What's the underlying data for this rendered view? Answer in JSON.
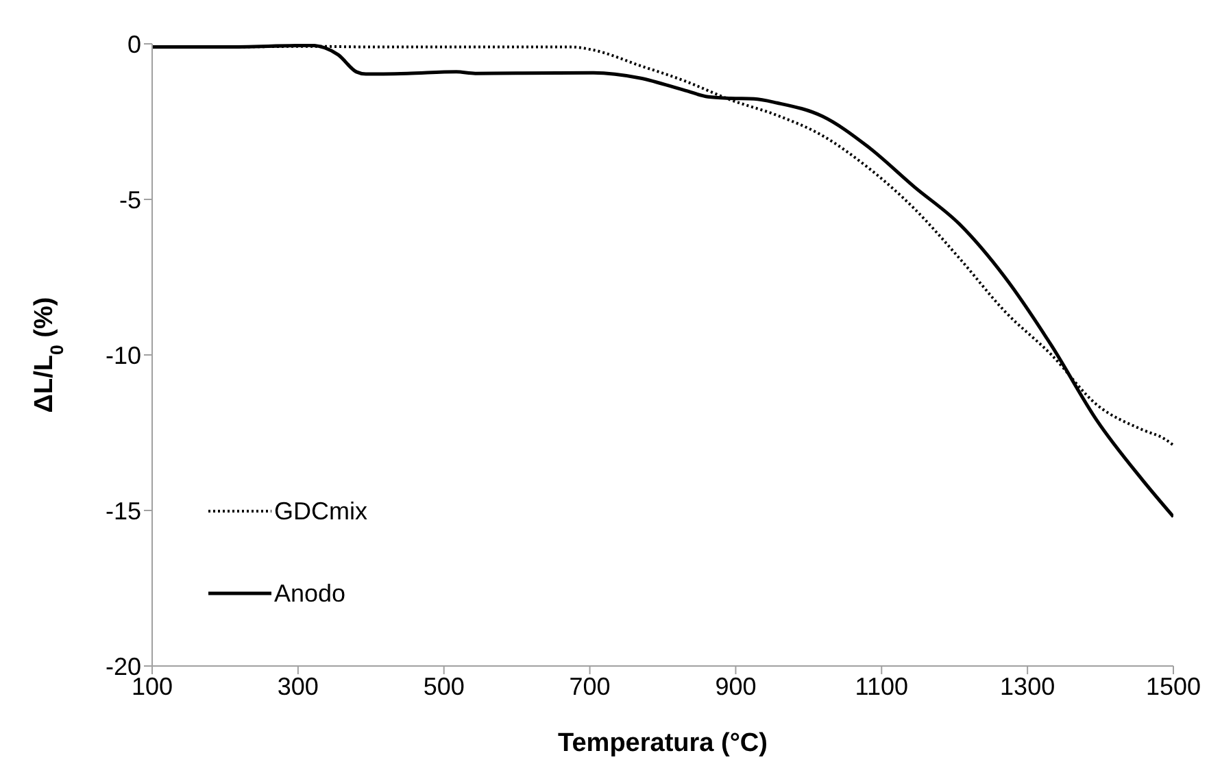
{
  "chart_data": {
    "type": "line",
    "xlabel": "Temperatura (°C)",
    "ylabel": "ΔL/L$_{0}$ (%)",
    "xlim": [
      100,
      1500
    ],
    "xticks": [
      100,
      300,
      500,
      700,
      900,
      1100,
      1300,
      1500
    ],
    "ylim": [
      -20,
      0
    ],
    "yticks": [
      -20,
      -15,
      -10,
      -5,
      0
    ],
    "grid": false,
    "legend": "bottom left",
    "marker": "none",
    "series": [
      {
        "name": "GDCmix",
        "color": "#000000",
        "line_style": "dotted",
        "x": [
          100,
          200,
          318,
          400,
          500,
          600,
          675,
          705,
          769,
          831,
          893,
          957,
          1019,
          1081,
          1145,
          1207,
          1269,
          1333,
          1395,
          1457,
          1488,
          1500
        ],
        "values": [
          -0.1,
          -0.1,
          -0.08,
          -0.1,
          -0.1,
          -0.1,
          -0.1,
          -0.2,
          -0.7,
          -1.2,
          -1.8,
          -2.3,
          -2.95,
          -3.97,
          -5.3,
          -6.9,
          -8.6,
          -10.0,
          -11.6,
          -12.4,
          -12.7,
          -12.9
        ]
      },
      {
        "name": "Anodo",
        "color": "#000000",
        "line_style": "solid",
        "x": [
          100,
          200,
          318,
          355,
          380,
          393,
          450,
          517,
          543,
          600,
          705,
          769,
          831,
          862,
          893,
          925,
          957,
          1019,
          1081,
          1145,
          1207,
          1269,
          1333,
          1395,
          1457,
          1500
        ],
        "values": [
          -0.1,
          -0.1,
          -0.05,
          -0.35,
          -0.9,
          -0.97,
          -0.95,
          -0.9,
          -0.95,
          -0.94,
          -0.93,
          -1.1,
          -1.5,
          -1.7,
          -1.75,
          -1.77,
          -1.9,
          -2.33,
          -3.3,
          -4.6,
          -5.8,
          -7.5,
          -9.7,
          -12.1,
          -14.0,
          -15.2
        ]
      }
    ]
  }
}
